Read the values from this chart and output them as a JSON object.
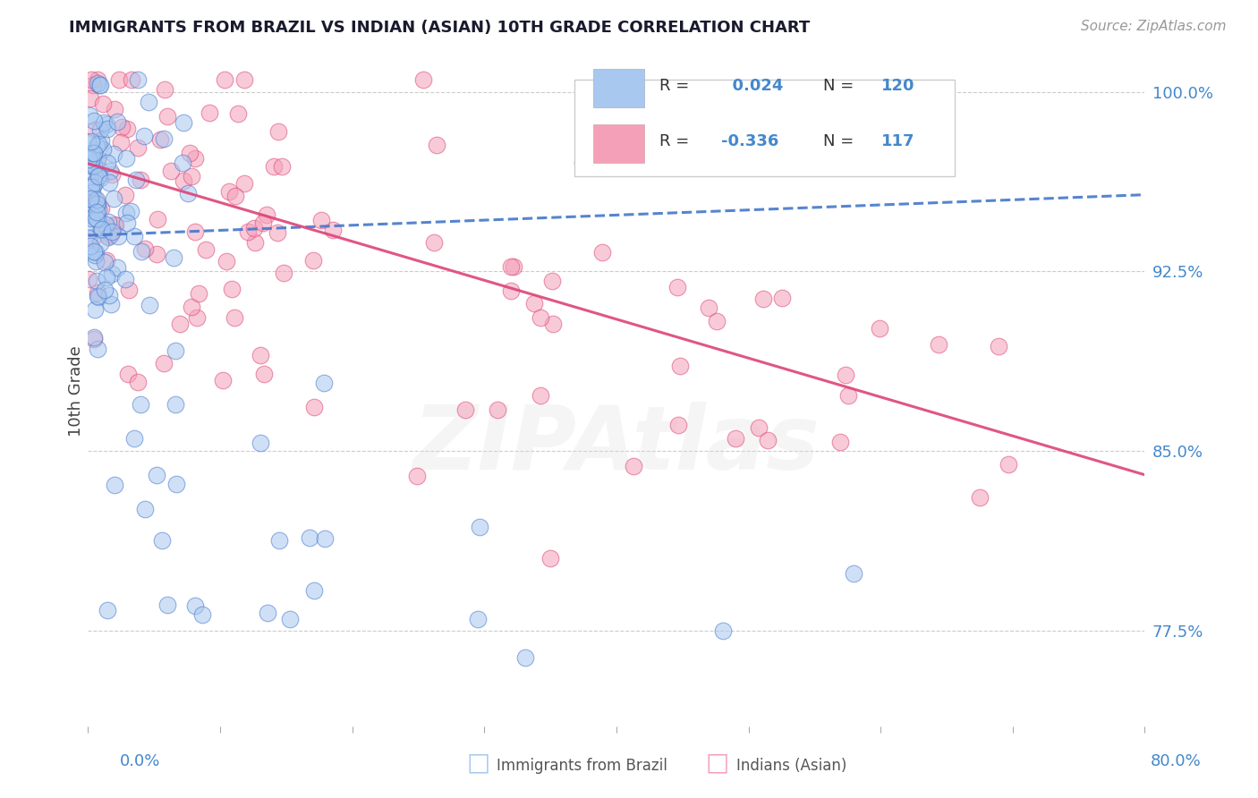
{
  "title": "IMMIGRANTS FROM BRAZIL VS INDIAN (ASIAN) 10TH GRADE CORRELATION CHART",
  "source_text": "Source: ZipAtlas.com",
  "ylabel": "10th Grade",
  "ylabel_ticks": [
    "77.5%",
    "85.0%",
    "92.5%",
    "100.0%"
  ],
  "ylabel_tick_vals": [
    0.775,
    0.85,
    0.925,
    1.0
  ],
  "xlim": [
    0.0,
    0.8
  ],
  "ylim": [
    0.735,
    1.015
  ],
  "R_brazil": 0.024,
  "N_brazil": 120,
  "R_indian": -0.336,
  "N_indian": 117,
  "color_brazil": "#A8C8F0",
  "color_indian": "#F4A0B8",
  "trend_brazil_color": "#4477CC",
  "trend_indian_color": "#DD4477",
  "watermark": "ZIPAtlas",
  "background_color": "#FFFFFF"
}
